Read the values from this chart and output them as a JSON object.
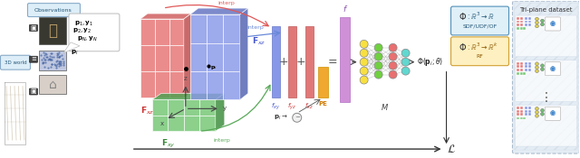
{
  "bg_color": "#ffffff",
  "obs_label": "Observations",
  "world_label": "3D world",
  "triplane_dataset_label": "Tri-plane dataset",
  "plane_xz_color": "#e87878",
  "plane_xz_dark": "#c85858",
  "plane_xy_color": "#8898e8",
  "plane_xy_dark": "#6878c8",
  "plane_yz_color": "#78c878",
  "plane_yz_dark": "#58a858",
  "interp_red": "#e05858",
  "interp_blue": "#6888d8",
  "interp_green": "#58a858",
  "fxy_color": "#8898e8",
  "fyz_color": "#e07878",
  "fxz_color": "#e07878",
  "f_bar_color": "#d090d8",
  "pe_color": "#f0a830",
  "pe_text_color": "#d07800",
  "mlp_colors": [
    "#f8e840",
    "#80d050",
    "#e87878",
    "#f0a030",
    "#80d8d0"
  ],
  "formula1_bg": "#e0f0f8",
  "formula1_border": "#5090b8",
  "formula2_bg": "#fef0c0",
  "formula2_border": "#d0a030",
  "dataset_bg": "#e8eef8",
  "Fxz_label_color": "#cc3333",
  "Fxy_label_color": "#4455cc",
  "Fyz_label_color": "#338833"
}
